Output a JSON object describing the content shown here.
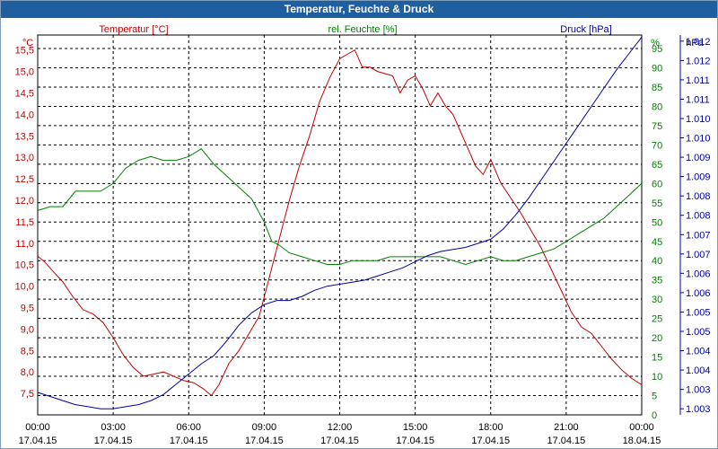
{
  "window": {
    "title": "Temperatur, Feuchte & Druck"
  },
  "chart_data": {
    "type": "line",
    "title": "Temperatur, Feuchte & Druck",
    "x_ticks": [
      [
        "00:00",
        "17.04.15"
      ],
      [
        "03:00",
        "17.04.15"
      ],
      [
        "06:00",
        "17.04.15"
      ],
      [
        "09:00",
        "17.04.15"
      ],
      [
        "12:00",
        "17.04.15"
      ],
      [
        "15:00",
        "17.04.15"
      ],
      [
        "18:00",
        "17.04.15"
      ],
      [
        "21:00",
        "17.04.15"
      ],
      [
        "00:00",
        "18.04.15"
      ]
    ],
    "xlim": [
      0,
      24
    ],
    "grid": true,
    "axes": {
      "temperature": {
        "unit": "°C",
        "label": "Temperatur [°C]",
        "ylim": [
          7,
          15.85
        ],
        "color": "#c00000",
        "ticks": [
          "7,5",
          "8,0",
          "8,5",
          "9,0",
          "9,5",
          "10,0",
          "10,5",
          "11,0",
          "11,5",
          "12,0",
          "12,5",
          "13,0",
          "13,5",
          "14,0",
          "14,5",
          "15,0",
          "15,5"
        ]
      },
      "humidity": {
        "unit": "%",
        "label": "rel. Feuchte [%]",
        "ylim": [
          0,
          98.5
        ],
        "color": "#008000",
        "ticks": [
          "0",
          "5",
          "10",
          "15",
          "20",
          "25",
          "30",
          "35",
          "40",
          "45",
          "50",
          "55",
          "60",
          "65",
          "70",
          "75",
          "80",
          "85",
          "90",
          "95"
        ]
      },
      "pressure": {
        "unit": "hPa",
        "label": "Druck [hPa]",
        "ylim": [
          1002.85,
          1012.15
        ],
        "color": "#0000a0",
        "ticks": [
          "1.003",
          "1.003",
          "1.004",
          "1.004",
          "1.005",
          "1.005",
          "1.006",
          "1.006",
          "1.007",
          "1.007",
          "1.008",
          "1.008",
          "1.009",
          "1.009",
          "1.010",
          "1.010",
          "1.011",
          "1.011",
          "1.012",
          "1.012"
        ]
      }
    },
    "series": [
      {
        "name": "Temperatur [°C]",
        "axis": "temperature",
        "color": "#c00000",
        "x": [
          0,
          0.3,
          0.6,
          1,
          1.4,
          1.8,
          2.2,
          2.6,
          3,
          3.4,
          3.8,
          4.2,
          4.6,
          5,
          5.4,
          5.8,
          6.2,
          6.6,
          6.9,
          7.2,
          7.6,
          8,
          8.4,
          8.8,
          9.2,
          9.6,
          10,
          10.4,
          10.8,
          11.2,
          11.6,
          12,
          12.3,
          12.6,
          12.9,
          13.2,
          13.5,
          13.8,
          14.1,
          14.4,
          14.7,
          15,
          15.3,
          15.6,
          15.9,
          16.2,
          16.5,
          16.8,
          17.1,
          17.4,
          17.7,
          18,
          18.4,
          18.8,
          19.2,
          19.6,
          20,
          20.4,
          20.8,
          21.2,
          21.6,
          22,
          22.4,
          22.8,
          23.2,
          23.6,
          24
        ],
        "values": [
          10.7,
          10.55,
          10.35,
          10.1,
          9.75,
          9.45,
          9.35,
          9.15,
          8.8,
          8.4,
          8.1,
          7.9,
          7.95,
          8.0,
          7.9,
          7.8,
          7.75,
          7.6,
          7.45,
          7.7,
          8.2,
          8.5,
          8.9,
          9.3,
          10.2,
          11.1,
          12.0,
          12.8,
          13.5,
          14.3,
          14.85,
          15.3,
          15.4,
          15.5,
          15.1,
          15.1,
          15.0,
          14.95,
          14.9,
          14.5,
          14.8,
          14.9,
          14.6,
          14.2,
          14.5,
          14.2,
          14.0,
          13.6,
          13.2,
          12.8,
          12.6,
          12.95,
          12.4,
          12.05,
          11.7,
          11.3,
          10.9,
          10.4,
          9.9,
          9.4,
          9.05,
          8.9,
          8.6,
          8.3,
          8.05,
          7.85,
          7.7
        ]
      },
      {
        "name": "rel. Feuchte [%]",
        "axis": "humidity",
        "color": "#008000",
        "x": [
          0,
          0.5,
          1,
          1.5,
          2,
          2.5,
          3,
          3.5,
          4,
          4.5,
          5,
          5.5,
          6,
          6.5,
          7,
          7.5,
          8,
          8.5,
          9,
          9.3,
          9.6,
          10,
          10.5,
          11,
          11.5,
          12,
          12.5,
          13,
          13.5,
          14,
          14.5,
          15,
          15.5,
          16,
          16.5,
          17,
          17.5,
          18,
          18.5,
          19,
          19.5,
          20,
          20.5,
          21,
          21.5,
          22,
          22.5,
          23,
          23.5,
          24
        ],
        "values": [
          53,
          54,
          54,
          58,
          58,
          58,
          60,
          64,
          66,
          67,
          66,
          66,
          67,
          69,
          65,
          62,
          59,
          56,
          50,
          45,
          44,
          42,
          41,
          40,
          39,
          39,
          40,
          40,
          40,
          41,
          41,
          41,
          41,
          41,
          40,
          39,
          40,
          41,
          40,
          40,
          41,
          42,
          43,
          45,
          47,
          49,
          51,
          54,
          57,
          60
        ]
      },
      {
        "name": "Druck [hPa]",
        "axis": "pressure",
        "color": "#0000a0",
        "x": [
          0,
          0.5,
          1,
          1.5,
          2,
          2.5,
          3,
          3.5,
          4,
          4.5,
          5,
          5.5,
          6,
          6.5,
          7,
          7.5,
          8,
          8.5,
          9,
          9.5,
          10,
          10.5,
          11,
          11.5,
          12,
          12.5,
          13,
          13.5,
          14,
          14.5,
          15,
          15.5,
          16,
          16.5,
          17,
          17.5,
          18,
          18.5,
          19,
          19.5,
          20,
          20.5,
          21,
          21.5,
          22,
          22.5,
          23,
          23.5,
          24
        ],
        "values": [
          1003.4,
          1003.3,
          1003.2,
          1003.1,
          1003.05,
          1003.0,
          1003.0,
          1003.05,
          1003.1,
          1003.2,
          1003.35,
          1003.6,
          1003.85,
          1004.1,
          1004.3,
          1004.65,
          1005.05,
          1005.35,
          1005.55,
          1005.65,
          1005.65,
          1005.75,
          1005.9,
          1006.0,
          1006.05,
          1006.1,
          1006.15,
          1006.25,
          1006.35,
          1006.45,
          1006.6,
          1006.75,
          1006.85,
          1006.9,
          1006.95,
          1007.05,
          1007.15,
          1007.4,
          1007.75,
          1008.15,
          1008.6,
          1009.05,
          1009.5,
          1009.95,
          1010.4,
          1010.85,
          1011.3,
          1011.7,
          1012.1
        ]
      }
    ]
  }
}
